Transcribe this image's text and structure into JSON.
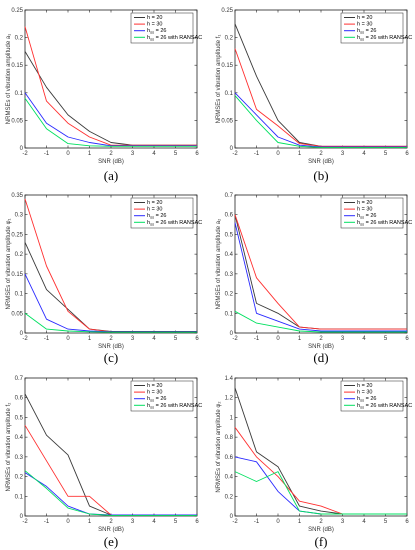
{
  "figure": {
    "legend_entries": [
      "h = 20",
      "h = 30",
      "h_ss = 26",
      "h_ss = 26 with RANSAC"
    ],
    "colors": [
      "#3a3a3a",
      "#ff3030",
      "#2a2aff",
      "#00e060"
    ],
    "xlabel": "SNR (dB)"
  },
  "chart_data": [
    {
      "type": "line",
      "panel": "(a)",
      "ylabel": "NRMSEs of vibration amplitude a₁",
      "xlim": [
        -2,
        6
      ],
      "ylim": [
        0,
        0.25
      ],
      "yticks": [
        0,
        0.05,
        0.1,
        0.15,
        0.2,
        0.25
      ],
      "ytick_labels": [
        "0",
        "0.05",
        "0.1",
        "0.15",
        "0.2",
        "0.25"
      ],
      "legend_position": "top-right",
      "grid": false,
      "x": [
        -2,
        -1,
        0,
        1,
        2,
        3,
        4,
        5,
        6
      ],
      "series": [
        {
          "name": "h = 20",
          "values": [
            0.175,
            0.11,
            0.06,
            0.03,
            0.01,
            0.005,
            0.005,
            0.005,
            0.005
          ]
        },
        {
          "name": "h = 30",
          "values": [
            0.22,
            0.085,
            0.045,
            0.02,
            0.005,
            0.005,
            0.005,
            0.005,
            0.005
          ]
        },
        {
          "name": "h_ss = 26",
          "values": [
            0.1,
            0.045,
            0.02,
            0.01,
            0.004,
            0.004,
            0.004,
            0.004,
            0.004
          ]
        },
        {
          "name": "h_ss = 26 with RANSAC",
          "values": [
            0.09,
            0.035,
            0.008,
            0.004,
            0.003,
            0.003,
            0.003,
            0.003,
            0.003
          ]
        }
      ]
    },
    {
      "type": "line",
      "panel": "(b)",
      "ylabel": "NRMSEs of vibration amplitude f₁",
      "xlim": [
        -2,
        6
      ],
      "ylim": [
        0,
        0.25
      ],
      "yticks": [
        0,
        0.05,
        0.1,
        0.15,
        0.2,
        0.25
      ],
      "ytick_labels": [
        "0",
        "0.05",
        "0.1",
        "0.15",
        "0.2",
        "0.25"
      ],
      "legend_position": "top-right",
      "grid": false,
      "x": [
        -2,
        -1,
        0,
        1,
        2,
        3,
        4,
        5,
        6
      ],
      "series": [
        {
          "name": "h = 20",
          "values": [
            0.225,
            0.13,
            0.05,
            0.01,
            0.003,
            0.003,
            0.003,
            0.003,
            0.003
          ]
        },
        {
          "name": "h = 30",
          "values": [
            0.18,
            0.07,
            0.04,
            0.008,
            0.003,
            0.003,
            0.003,
            0.003,
            0.003
          ]
        },
        {
          "name": "h_ss = 26",
          "values": [
            0.1,
            0.06,
            0.02,
            0.005,
            0.002,
            0.002,
            0.002,
            0.002,
            0.002
          ]
        },
        {
          "name": "h_ss = 26 with RANSAC",
          "values": [
            0.095,
            0.05,
            0.01,
            0.003,
            0.001,
            0.001,
            0.001,
            0.001,
            0.001
          ]
        }
      ]
    },
    {
      "type": "line",
      "panel": "(c)",
      "ylabel": "NRMSEs of vibration amplitude φ₁",
      "xlim": [
        -2,
        6
      ],
      "ylim": [
        0,
        0.35
      ],
      "yticks": [
        0,
        0.05,
        0.1,
        0.15,
        0.2,
        0.25,
        0.3,
        0.35
      ],
      "ytick_labels": [
        "0",
        "0.05",
        "0.1",
        "0.15",
        "0.2",
        "0.25",
        "0.3",
        "0.35"
      ],
      "legend_position": "top-right",
      "grid": false,
      "x": [
        -2,
        -1,
        0,
        1,
        2,
        3,
        4,
        5,
        6
      ],
      "series": [
        {
          "name": "h = 20",
          "values": [
            0.23,
            0.11,
            0.06,
            0.01,
            0.004,
            0.004,
            0.004,
            0.004,
            0.004
          ]
        },
        {
          "name": "h = 30",
          "values": [
            0.34,
            0.17,
            0.055,
            0.01,
            0.003,
            0.003,
            0.003,
            0.003,
            0.003
          ]
        },
        {
          "name": "h_ss = 26",
          "values": [
            0.15,
            0.035,
            0.01,
            0.005,
            0.003,
            0.003,
            0.003,
            0.003,
            0.003
          ]
        },
        {
          "name": "h_ss = 26 with RANSAC",
          "values": [
            0.05,
            0.01,
            0.005,
            0.003,
            0.002,
            0.002,
            0.002,
            0.002,
            0.002
          ]
        }
      ]
    },
    {
      "type": "line",
      "panel": "(d)",
      "ylabel": "NRMSEs of vibration amplitude a₂",
      "xlim": [
        -2,
        6
      ],
      "ylim": [
        0,
        0.7
      ],
      "yticks": [
        0,
        0.1,
        0.2,
        0.3,
        0.4,
        0.5,
        0.6,
        0.7
      ],
      "ytick_labels": [
        "0",
        "0.1",
        "0.2",
        "0.3",
        "0.4",
        "0.5",
        "0.6",
        "0.7"
      ],
      "legend_position": "top-right",
      "grid": false,
      "x": [
        -2,
        -1,
        0,
        1,
        2,
        3,
        4,
        5,
        6
      ],
      "series": [
        {
          "name": "h = 20",
          "values": [
            0.6,
            0.15,
            0.1,
            0.03,
            0.02,
            0.02,
            0.02,
            0.02,
            0.02
          ]
        },
        {
          "name": "h = 30",
          "values": [
            0.6,
            0.28,
            0.15,
            0.03,
            0.02,
            0.02,
            0.02,
            0.02,
            0.02
          ]
        },
        {
          "name": "h_ss = 26",
          "values": [
            0.56,
            0.1,
            0.06,
            0.02,
            0.01,
            0.01,
            0.01,
            0.01,
            0.01
          ]
        },
        {
          "name": "h_ss = 26 with RANSAC",
          "values": [
            0.11,
            0.05,
            0.03,
            0.01,
            0.005,
            0.005,
            0.005,
            0.005,
            0.005
          ]
        }
      ]
    },
    {
      "type": "line",
      "panel": "(e)",
      "ylabel": "NRMSEs of vibration amplitude f₂",
      "xlim": [
        -2,
        6
      ],
      "ylim": [
        0,
        0.7
      ],
      "yticks": [
        0,
        0.1,
        0.2,
        0.3,
        0.4,
        0.5,
        0.6,
        0.7
      ],
      "ytick_labels": [
        "0",
        "0.1",
        "0.2",
        "0.3",
        "0.4",
        "0.5",
        "0.6",
        "0.7"
      ],
      "legend_position": "top-right",
      "grid": false,
      "x": [
        -2,
        -1,
        0,
        1,
        2,
        3,
        4,
        5,
        6
      ],
      "series": [
        {
          "name": "h = 20",
          "values": [
            0.62,
            0.41,
            0.31,
            0.05,
            0.005,
            0.005,
            0.005,
            0.005,
            0.005
          ]
        },
        {
          "name": "h = 30",
          "values": [
            0.46,
            0.28,
            0.1,
            0.1,
            0.005,
            0.005,
            0.005,
            0.005,
            0.005
          ]
        },
        {
          "name": "h_ss = 26",
          "values": [
            0.22,
            0.15,
            0.05,
            0.01,
            0.005,
            0.005,
            0.005,
            0.005,
            0.005
          ]
        },
        {
          "name": "h_ss = 26 with RANSAC",
          "values": [
            0.23,
            0.14,
            0.04,
            0.01,
            0.003,
            0.003,
            0.003,
            0.003,
            0.003
          ]
        }
      ]
    },
    {
      "type": "line",
      "panel": "(f)",
      "ylabel": "NRMSEs of vibration amplitude φ₂",
      "xlim": [
        -2,
        6
      ],
      "ylim": [
        0,
        1.4
      ],
      "yticks": [
        0,
        0.2,
        0.4,
        0.6,
        0.8,
        1,
        1.2,
        1.4
      ],
      "ytick_labels": [
        "0",
        "0.2",
        "0.4",
        "0.6",
        "0.8",
        "1",
        "1.2",
        "1.4"
      ],
      "legend_position": "top-right",
      "grid": false,
      "x": [
        -2,
        -1,
        0,
        1,
        2,
        3,
        4,
        5,
        6
      ],
      "series": [
        {
          "name": "h = 20",
          "values": [
            1.3,
            0.65,
            0.5,
            0.1,
            0.05,
            0.02,
            0.02,
            0.02,
            0.02
          ]
        },
        {
          "name": "h = 30",
          "values": [
            0.9,
            0.6,
            0.4,
            0.15,
            0.1,
            0.02,
            0.02,
            0.02,
            0.02
          ]
        },
        {
          "name": "h_ss = 26",
          "values": [
            0.6,
            0.55,
            0.25,
            0.05,
            0.02,
            0.02,
            0.02,
            0.02,
            0.02
          ]
        },
        {
          "name": "h_ss = 26 with RANSAC",
          "values": [
            0.45,
            0.35,
            0.45,
            0.05,
            0.02,
            0.02,
            0.02,
            0.02,
            0.02
          ]
        }
      ]
    }
  ]
}
